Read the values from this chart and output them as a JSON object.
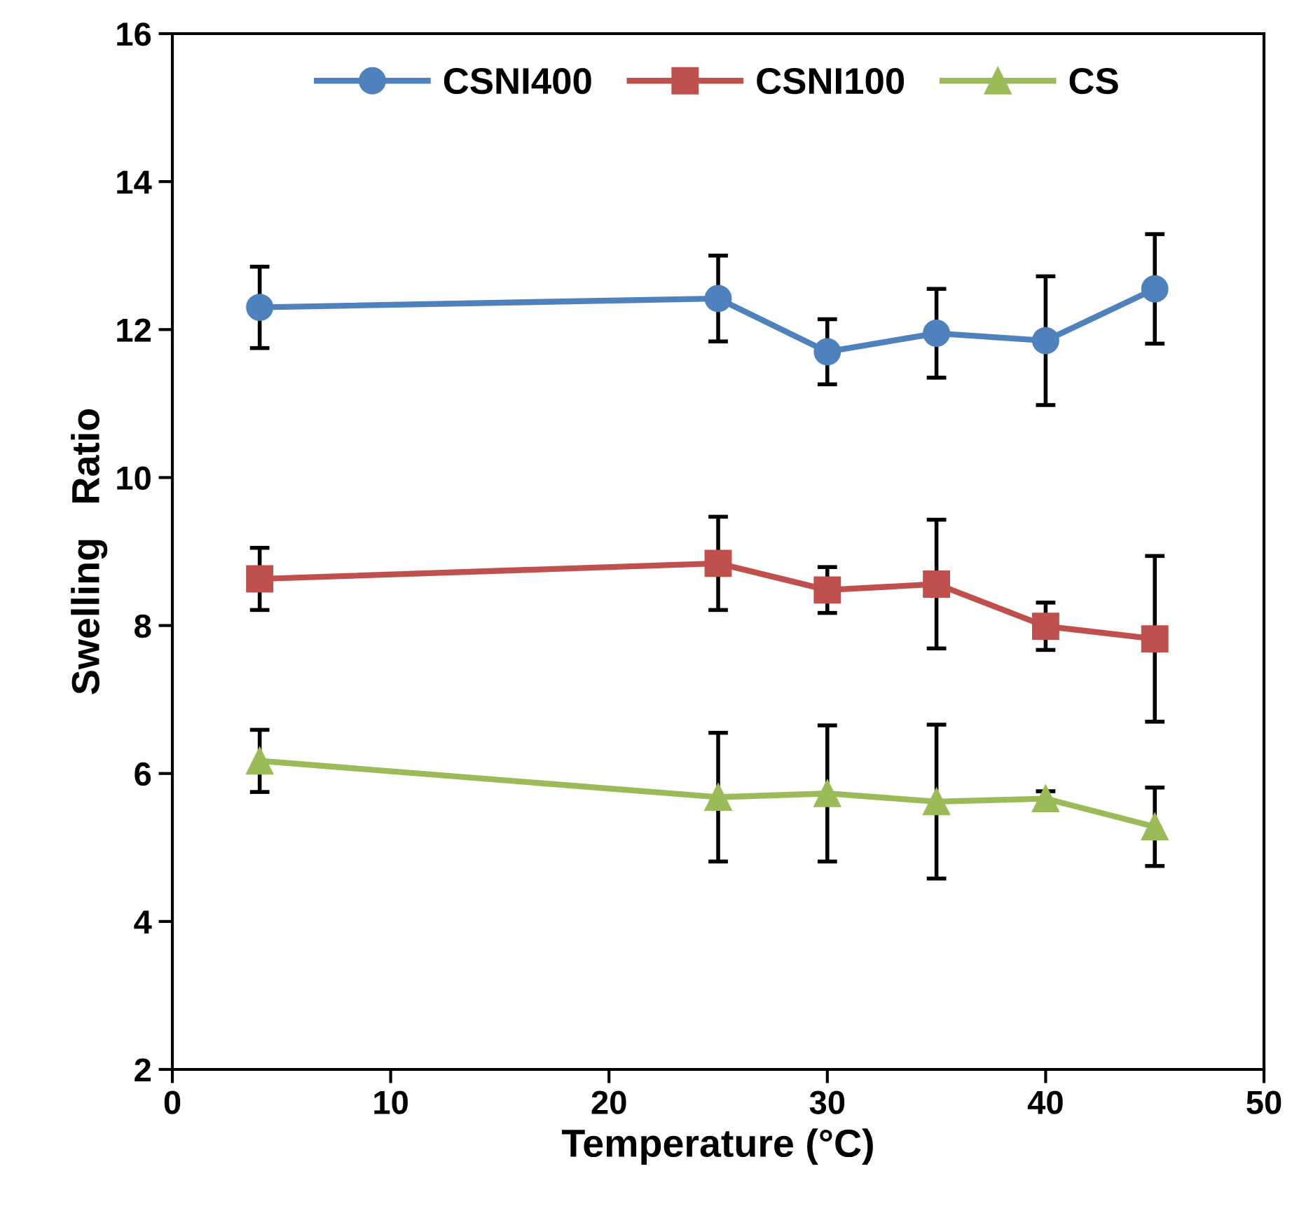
{
  "chart_data": {
    "type": "line",
    "xlabel": "Temperature (°C)",
    "ylabel": "Swelling   Ratio",
    "x": [
      4,
      25,
      30,
      35,
      40,
      45
    ],
    "series": [
      {
        "name": "CSNI400",
        "color": "#4f81bd",
        "marker": "circle",
        "values": [
          12.3,
          12.42,
          11.7,
          11.95,
          11.85,
          12.55
        ],
        "errors": [
          0.55,
          0.58,
          0.44,
          0.6,
          0.87,
          0.74
        ]
      },
      {
        "name": "CSNI100",
        "color": "#c0504d",
        "marker": "square",
        "values": [
          8.63,
          8.84,
          8.48,
          8.56,
          7.99,
          7.82
        ],
        "errors": [
          0.42,
          0.63,
          0.31,
          0.87,
          0.32,
          1.12
        ]
      },
      {
        "name": "CS",
        "color": "#9bbb59",
        "marker": "triangle",
        "values": [
          6.17,
          5.68,
          5.73,
          5.62,
          5.66,
          5.28
        ],
        "errors": [
          0.42,
          0.87,
          0.92,
          1.04,
          0.1,
          0.53
        ]
      }
    ],
    "xlim": [
      0,
      50
    ],
    "xticks": [
      0,
      10,
      20,
      30,
      40,
      50
    ],
    "ylim": [
      2,
      16
    ],
    "yticks": [
      2,
      4,
      6,
      8,
      10,
      12,
      14,
      16
    ],
    "grid": false,
    "legend": "top",
    "line_style": "solid"
  }
}
